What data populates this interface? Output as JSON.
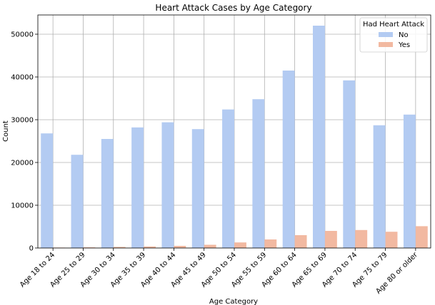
{
  "chart_data": {
    "type": "bar",
    "title": "Heart Attack Cases by Age Category",
    "xlabel": "Age Category",
    "ylabel": "Count",
    "ylim": [
      0,
      54500
    ],
    "yticks": [
      0,
      10000,
      20000,
      30000,
      40000,
      50000
    ],
    "grid": true,
    "legend_position": "top-right",
    "legend_title": "Had Heart Attack",
    "categories": [
      "Age 18 to 24",
      "Age 25 to 29",
      "Age 30 to 34",
      "Age 35 to 39",
      "Age 40 to 44",
      "Age 45 to 49",
      "Age 50 to 54",
      "Age 55 to 59",
      "Age 60 to 64",
      "Age 65 to 69",
      "Age 70 to 74",
      "Age 75 to 79",
      "Age 80 or older"
    ],
    "series": [
      {
        "name": "No",
        "color": "#b3cbf2",
        "values": [
          26800,
          21800,
          25500,
          28200,
          29400,
          27800,
          32400,
          34800,
          41500,
          52000,
          39200,
          28700,
          31200
        ]
      },
      {
        "name": "Yes",
        "color": "#f2b9a1",
        "values": [
          100,
          150,
          250,
          350,
          500,
          750,
          1300,
          2000,
          3000,
          4000,
          4200,
          3800,
          5100
        ]
      }
    ]
  }
}
